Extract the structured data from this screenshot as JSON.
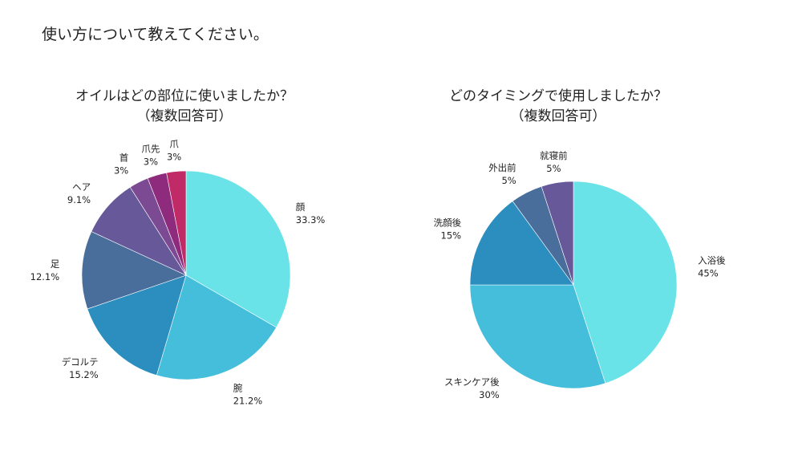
{
  "page_title": "使い方について教えてください。",
  "chart_data": [
    {
      "type": "pie",
      "title": "オイルはどの部位に使いましたか？",
      "subtitle": "（複数回答可）",
      "slices": [
        {
          "label": "顔",
          "value": 33.3,
          "value_label": "33.3%",
          "color": "#6ae3e8"
        },
        {
          "label": "腕",
          "value": 21.2,
          "value_label": "21.2%",
          "color": "#45bedb"
        },
        {
          "label": "デコルテ",
          "value": 15.2,
          "value_label": "15.2%",
          "color": "#2b8ebf"
        },
        {
          "label": "足",
          "value": 12.1,
          "value_label": "12.1%",
          "color": "#4a6e9b"
        },
        {
          "label": "ヘア",
          "value": 9.1,
          "value_label": "9.1%",
          "color": "#67589a"
        },
        {
          "label": "首",
          "value": 3,
          "value_label": "3%",
          "color": "#7c4a93"
        },
        {
          "label": "爪先",
          "value": 3,
          "value_label": "3%",
          "color": "#8f2b7d"
        },
        {
          "label": "爪",
          "value": 3,
          "value_label": "3%",
          "color": "#c02a66"
        }
      ]
    },
    {
      "type": "pie",
      "title": "どのタイミングで使用しましたか？",
      "subtitle": "（複数回答可）",
      "slices": [
        {
          "label": "入浴後",
          "value": 45,
          "value_label": "45%",
          "color": "#6ae3e8"
        },
        {
          "label": "スキンケア後",
          "value": 30,
          "value_label": "30%",
          "color": "#45bedb"
        },
        {
          "label": "洗顔後",
          "value": 15,
          "value_label": "15%",
          "color": "#2b8ebf"
        },
        {
          "label": "外出前",
          "value": 5,
          "value_label": "5%",
          "color": "#4a6e9b"
        },
        {
          "label": "就寝前",
          "value": 5,
          "value_label": "5%",
          "color": "#67589a"
        }
      ]
    }
  ]
}
